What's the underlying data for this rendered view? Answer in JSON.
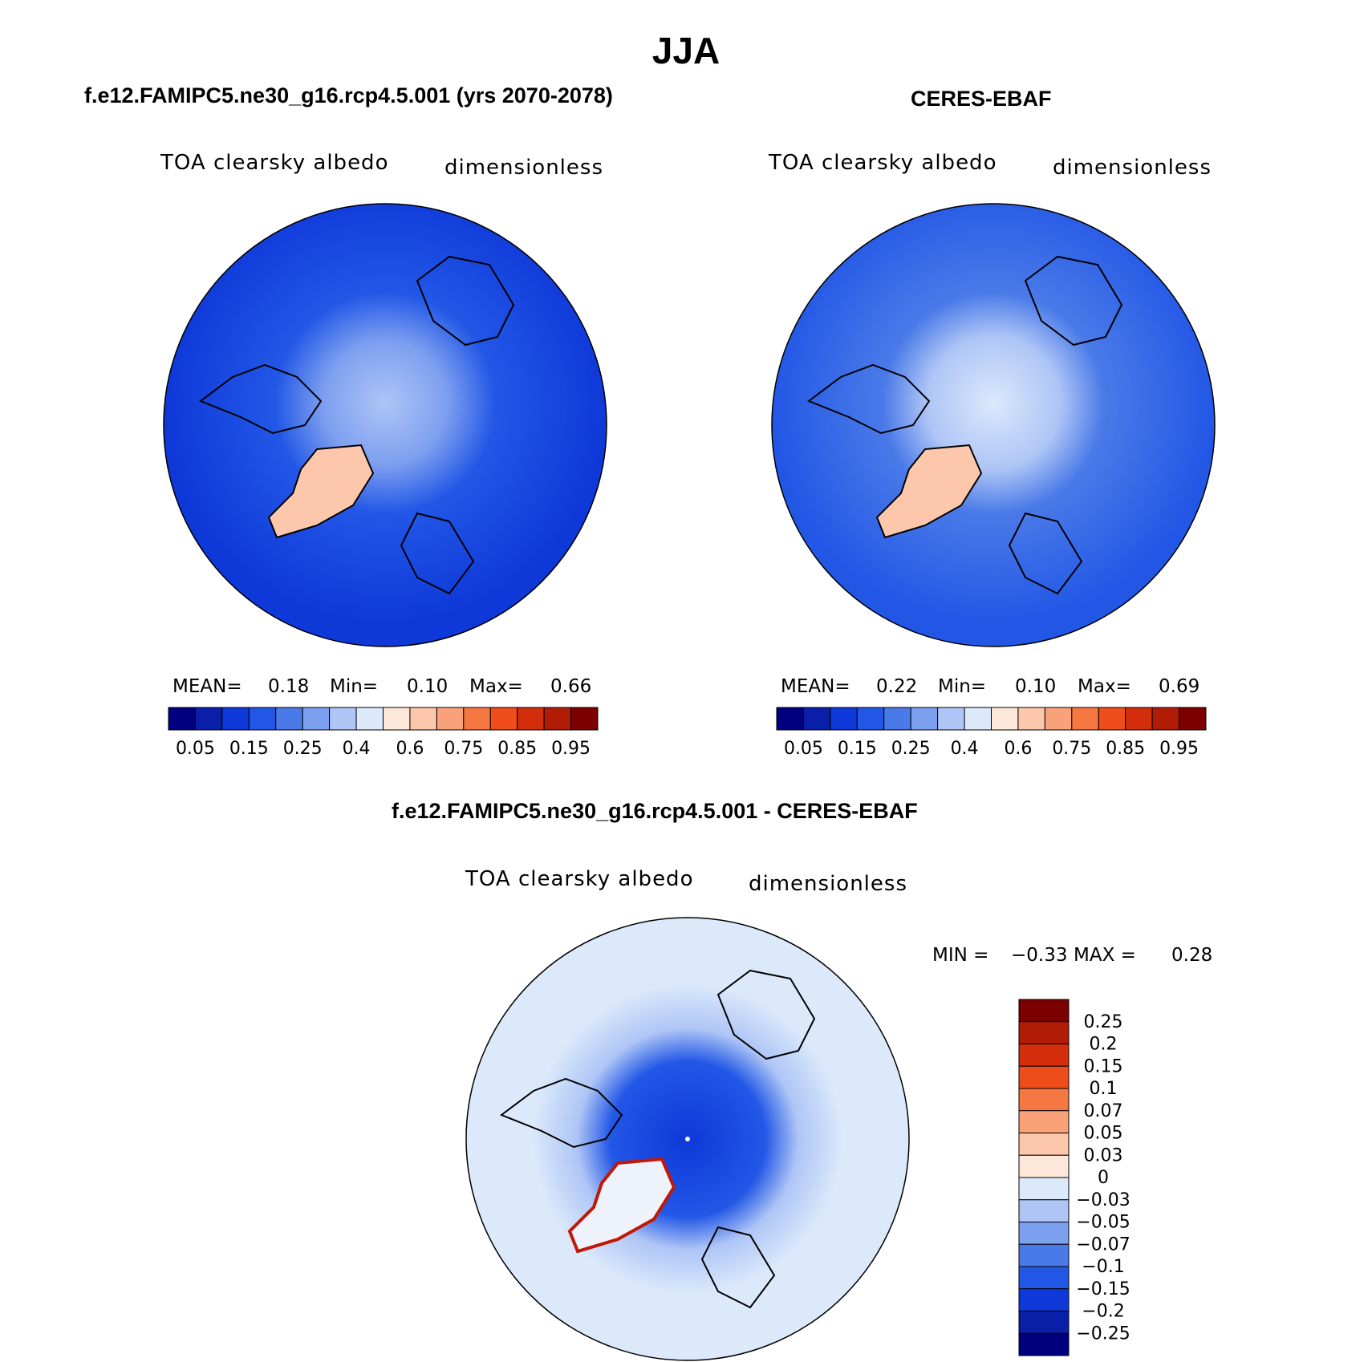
{
  "figure_title": "JJA",
  "panels": [
    {
      "title": "f.e12.FAMIPC5.ne30_g16.rcp4.5.001 (yrs 2070-2078)",
      "variable": "TOA clearsky albedo",
      "units": "dimensionless",
      "stats": {
        "mean_label": "MEAN=",
        "mean": "0.18",
        "min_label": "Min=",
        "min": "0.10",
        "max_label": "Max=",
        "max": "0.66"
      }
    },
    {
      "title": "CERES-EBAF",
      "variable": "TOA clearsky albedo",
      "units": "dimensionless",
      "stats": {
        "mean_label": "MEAN=",
        "mean": "0.22",
        "min_label": "Min=",
        "min": "0.10",
        "max_label": "Max=",
        "max": "0.69"
      }
    },
    {
      "title": "f.e12.FAMIPC5.ne30_g16.rcp4.5.001 - CERES-EBAF",
      "variable": "TOA clearsky albedo",
      "units": "dimensionless",
      "stats": {
        "min_label": "MIN =",
        "min": "−0.33",
        "max_label": "MAX =",
        "max": "0.28"
      }
    }
  ],
  "colorbar_main": {
    "colors": [
      "#00007f",
      "#0a1fa8",
      "#0e38d8",
      "#2257e6",
      "#4a7ae8",
      "#7d9ff0",
      "#aec5f6",
      "#dbe9fb",
      "#fde7d8",
      "#fcc7aa",
      "#f9a27a",
      "#f57843",
      "#ef4d1a",
      "#d42e0c",
      "#b01c06",
      "#7d0000"
    ],
    "labels": [
      "0.05",
      "0.15",
      "0.25",
      "0.4",
      "0.6",
      "0.75",
      "0.85",
      "0.95"
    ]
  },
  "colorbar_diff": {
    "colors": [
      "#7d0000",
      "#b01c06",
      "#d42e0c",
      "#ef4d1a",
      "#f57843",
      "#f9a27a",
      "#fcc7aa",
      "#fde7d8",
      "#dbe9fb",
      "#aec5f6",
      "#7d9ff0",
      "#4a7ae8",
      "#2257e6",
      "#0e38d8",
      "#0a1fa8",
      "#00007f"
    ],
    "labels": [
      "0.25",
      "0.2",
      "0.15",
      "0.1",
      "0.07",
      "0.05",
      "0.03",
      "0",
      "−0.03",
      "−0.05",
      "−0.07",
      "−0.1",
      "−0.15",
      "−0.2",
      "−0.25"
    ]
  }
}
